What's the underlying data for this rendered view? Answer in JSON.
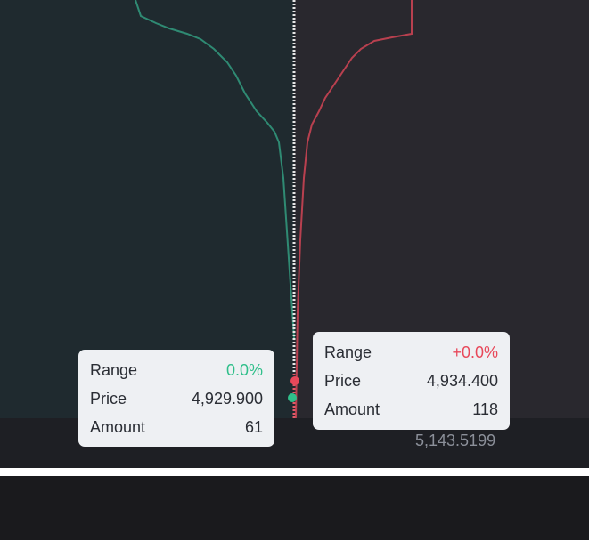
{
  "axis": {
    "label": "5,143.5199"
  },
  "tooltips": [
    {
      "rows": [
        {
          "label": "Range",
          "value": "0.0%"
        },
        {
          "label": "Price",
          "value": "4,929.900"
        },
        {
          "label": "Amount",
          "value": "61"
        }
      ]
    },
    {
      "rows": [
        {
          "label": "Range",
          "value": "+0.0%"
        },
        {
          "label": "Price",
          "value": "4,934.400"
        },
        {
          "label": "Amount",
          "value": "118"
        }
      ]
    }
  ]
}
